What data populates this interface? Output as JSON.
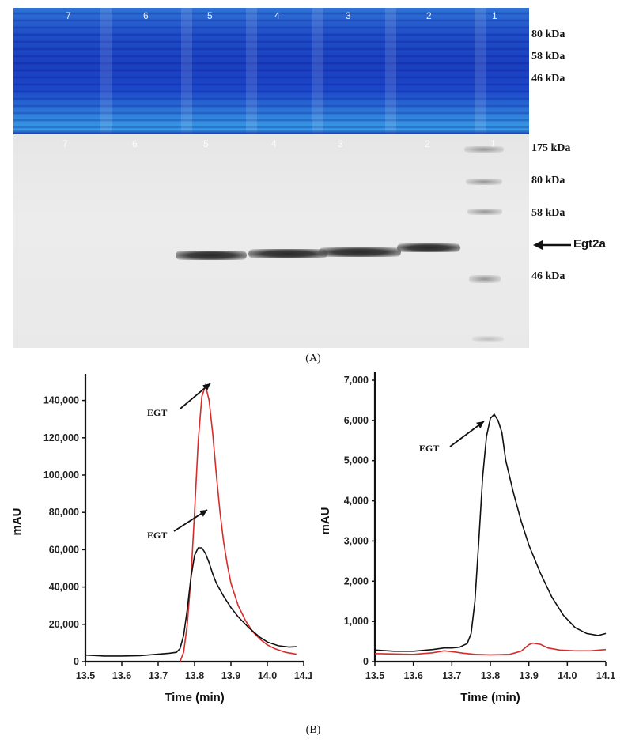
{
  "panel_a": {
    "label": "(A)",
    "coomassie": {
      "lanes": [
        "7",
        "6",
        "5",
        "4",
        "3",
        "2",
        "1"
      ]
    },
    "western": {
      "lanes": [
        "7",
        "6",
        "5",
        "4",
        "3",
        "2",
        "1"
      ]
    },
    "coomassie_markers": [
      "80 kDa",
      "58 kDa",
      "46 kDa"
    ],
    "western_markers": [
      "175 kDa",
      "80 kDa",
      "58 kDa",
      "46 kDa"
    ],
    "band_label": "Egt2a",
    "band_lanes": [
      "5",
      "4",
      "3",
      "2"
    ]
  },
  "panel_b": {
    "label": "(B)"
  },
  "colors": {
    "red_trace": "#d62c2c",
    "black_trace": "#111111",
    "gel_blue": "#1f4fc8",
    "membrane_gray": "#e8e8e8"
  },
  "chart_data": [
    {
      "type": "line",
      "xlabel": "Time (min)",
      "ylabel": "mAU",
      "xlim": [
        13.5,
        14.1
      ],
      "ylim": [
        0,
        150000
      ],
      "x_ticks": [
        "13.5",
        "13.6",
        "13.7",
        "13.8",
        "13.9",
        "14.0",
        "14.1"
      ],
      "y_ticks": [
        "0",
        "20,000",
        "40,000",
        "60,000",
        "80,000",
        "100,000",
        "120,000",
        "140,000"
      ],
      "y_tick_values": [
        0,
        20000,
        40000,
        60000,
        80000,
        100000,
        120000,
        140000
      ],
      "annotations": [
        "EGT",
        "EGT"
      ],
      "series": [
        {
          "color": "#d62c2c",
          "x": [
            13.76,
            13.77,
            13.78,
            13.79,
            13.8,
            13.81,
            13.82,
            13.83,
            13.84,
            13.85,
            13.86,
            13.87,
            13.88,
            13.89,
            13.9,
            13.92,
            13.94,
            13.96,
            13.98,
            14.0,
            14.02,
            14.05,
            14.08
          ],
          "y": [
            0,
            5000,
            20000,
            45000,
            80000,
            118000,
            142000,
            148000,
            140000,
            122000,
            100000,
            80000,
            64000,
            52000,
            42000,
            30000,
            22000,
            16000,
            12000,
            9000,
            7000,
            5000,
            4000
          ]
        },
        {
          "color": "#111111",
          "x": [
            13.5,
            13.55,
            13.6,
            13.65,
            13.7,
            13.73,
            13.75,
            13.76,
            13.77,
            13.78,
            13.79,
            13.8,
            13.81,
            13.82,
            13.83,
            13.84,
            13.85,
            13.86,
            13.88,
            13.9,
            13.92,
            13.95,
            13.98,
            14.0,
            14.03,
            14.06,
            14.08
          ],
          "y": [
            3500,
            3000,
            3000,
            3200,
            4000,
            4500,
            5000,
            7000,
            14000,
            28000,
            45000,
            57000,
            61000,
            61000,
            58000,
            53000,
            47000,
            42000,
            35000,
            29000,
            24000,
            18000,
            13000,
            10500,
            8500,
            7800,
            8000
          ]
        }
      ]
    },
    {
      "type": "line",
      "xlabel": "Time (min)",
      "ylabel": "mAU",
      "xlim": [
        13.5,
        14.1
      ],
      "ylim": [
        0,
        7000
      ],
      "x_ticks": [
        "13.5",
        "13.6",
        "13.7",
        "13.8",
        "13.9",
        "14.0",
        "14.1"
      ],
      "y_ticks": [
        "0",
        "1,000",
        "2,000",
        "3,000",
        "4,000",
        "5,000",
        "6,000",
        "7,000"
      ],
      "y_tick_values": [
        0,
        1000,
        2000,
        3000,
        4000,
        5000,
        6000,
        7000
      ],
      "annotations": [
        "EGT"
      ],
      "series": [
        {
          "color": "#111111",
          "x": [
            13.5,
            13.55,
            13.6,
            13.65,
            13.68,
            13.7,
            13.72,
            13.74,
            13.75,
            13.76,
            13.77,
            13.78,
            13.79,
            13.8,
            13.81,
            13.82,
            13.83,
            13.84,
            13.86,
            13.88,
            13.9,
            13.93,
            13.96,
            13.99,
            14.02,
            14.05,
            14.08,
            14.1
          ],
          "y": [
            290,
            260,
            260,
            300,
            340,
            340,
            360,
            450,
            700,
            1500,
            3000,
            4600,
            5600,
            6050,
            6150,
            6000,
            5700,
            5000,
            4200,
            3500,
            2900,
            2200,
            1600,
            1150,
            850,
            700,
            650,
            700
          ]
        },
        {
          "color": "#d62c2c",
          "x": [
            13.5,
            13.55,
            13.6,
            13.65,
            13.68,
            13.7,
            13.73,
            13.76,
            13.8,
            13.85,
            13.88,
            13.9,
            13.91,
            13.93,
            13.95,
            13.98,
            14.02,
            14.06,
            14.1
          ],
          "y": [
            200,
            190,
            180,
            220,
            270,
            250,
            210,
            180,
            170,
            180,
            260,
            420,
            460,
            430,
            340,
            290,
            270,
            270,
            300
          ]
        }
      ]
    }
  ]
}
